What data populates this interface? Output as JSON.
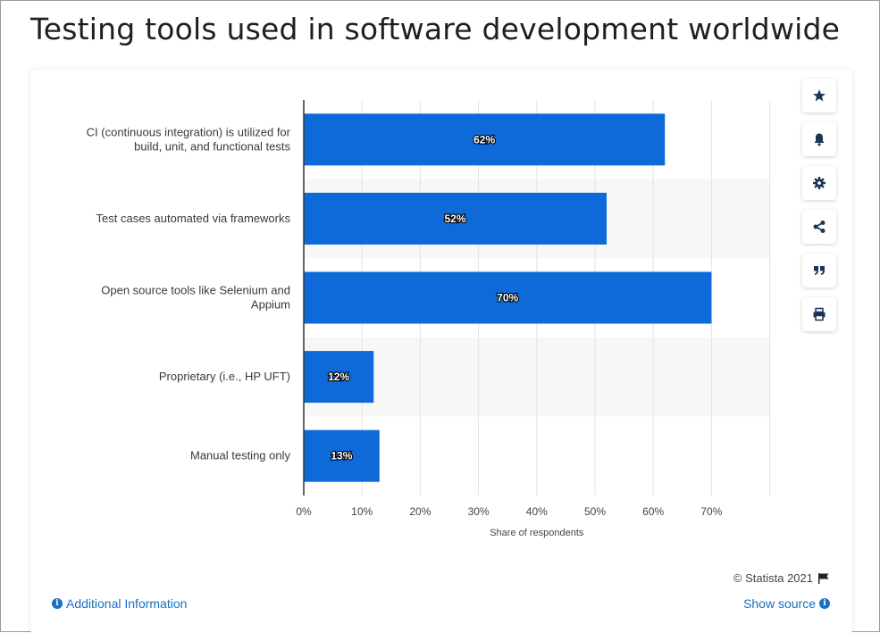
{
  "title": "Testing tools used in software development worldwide",
  "chart_data": {
    "type": "bar",
    "orientation": "horizontal",
    "categories": [
      [
        "CI (continuous integration) is utilized for",
        "build, unit, and functional tests"
      ],
      [
        "Test cases automated via frameworks"
      ],
      [
        "Open source tools like Selenium and",
        "Appium"
      ],
      [
        "Proprietary (i.e., HP UFT)"
      ],
      [
        "Manual testing only"
      ]
    ],
    "values": [
      62,
      52,
      70,
      12,
      13
    ],
    "data_labels": [
      "62%",
      "52%",
      "70%",
      "12%",
      "13%"
    ],
    "xlim": [
      0,
      80
    ],
    "xticks": [
      "0%",
      "10%",
      "20%",
      "30%",
      "40%",
      "50%",
      "60%",
      "70%"
    ],
    "xlabel": "Share of respondents",
    "bar_color": "#0d6ad8",
    "grid": true
  },
  "footer": {
    "copyright": "© Statista 2021",
    "additional_info": "Additional Information",
    "show_source": "Show source"
  },
  "tools": [
    "star-icon",
    "bell-icon",
    "gear-icon",
    "share-icon",
    "quote-icon",
    "print-icon"
  ]
}
